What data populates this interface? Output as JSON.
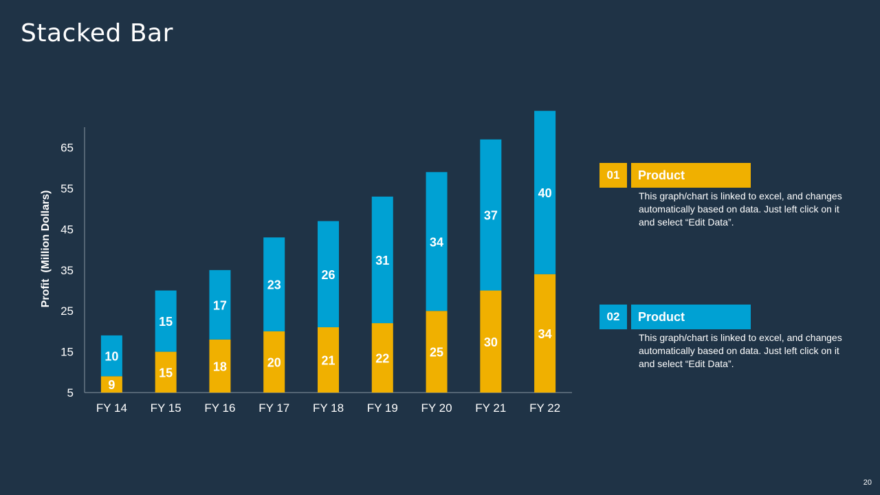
{
  "slide": {
    "title": "Stacked Bar",
    "page_number": "20"
  },
  "colors": {
    "background": "#1f3346",
    "series1": "#f0b000",
    "series2": "#00a1d3",
    "axis": "#8a97a3"
  },
  "legend": [
    {
      "number": "01",
      "label": "Product",
      "color": "#f0b000",
      "description": "This graph/chart is linked to excel, and changes automatically based on data. Just left click on it and select “Edit Data”."
    },
    {
      "number": "02",
      "label": "Product",
      "color": "#00a1d3",
      "description": "This graph/chart is linked to excel, and changes automatically based on data. Just left click on it and select “Edit Data”."
    }
  ],
  "chart_data": {
    "type": "bar",
    "stacked": true,
    "title": "",
    "xlabel": "",
    "ylabel": "Profit  (Million Dollars)",
    "categories": [
      "FY 14",
      "FY 15",
      "FY 16",
      "FY 17",
      "FY 18",
      "FY 19",
      "FY 20",
      "FY 21",
      "FY 22"
    ],
    "series": [
      {
        "name": "Product 01",
        "color": "#f0b000",
        "values": [
          9,
          15,
          18,
          20,
          21,
          22,
          25,
          30,
          34
        ]
      },
      {
        "name": "Product 02",
        "color": "#00a1d3",
        "values": [
          10,
          15,
          17,
          23,
          26,
          31,
          34,
          37,
          40
        ]
      }
    ],
    "yticks": [
      5,
      15,
      25,
      35,
      45,
      55,
      65
    ],
    "ylim": [
      5,
      70
    ],
    "grid": false
  }
}
